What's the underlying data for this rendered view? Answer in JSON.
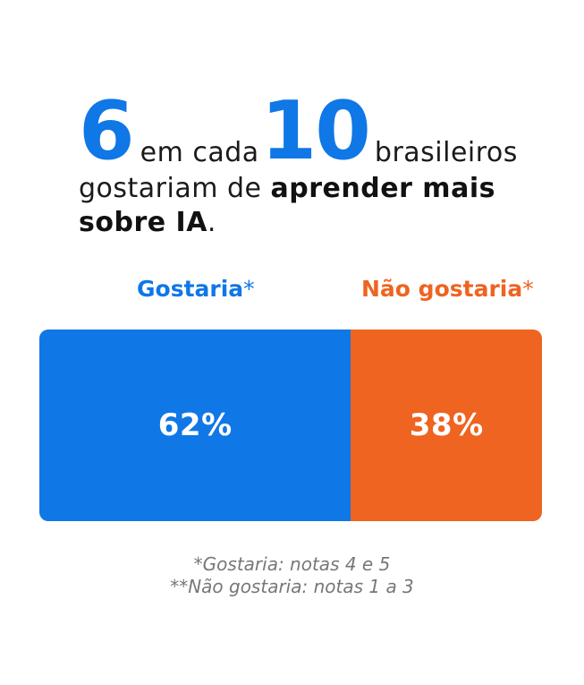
{
  "headline": {
    "num1": "6",
    "word1": "em cada",
    "num2": "10",
    "word2": "brasileiros",
    "line2_plain": "gostariam de ",
    "line2_bold": "aprender mais",
    "line3_bold": "sobre IA",
    "line3_end": "."
  },
  "legend": {
    "yes_label": "Gostaria",
    "yes_mark": "*",
    "no_label": "Não gostaria",
    "no_mark": "*"
  },
  "footnotes": {
    "line1": "*Gostaria: notas 4 e 5",
    "line2": "**Não gostaria: notas 1 a 3"
  },
  "colors": {
    "yes": "#1077e6",
    "no": "#ee6420"
  },
  "chart_data": {
    "type": "bar",
    "orientation": "horizontal-stacked",
    "categories": [
      "Gostaria",
      "Não gostaria"
    ],
    "values": [
      62,
      38
    ],
    "labels": [
      "62%",
      "38%"
    ],
    "unit": "%"
  }
}
